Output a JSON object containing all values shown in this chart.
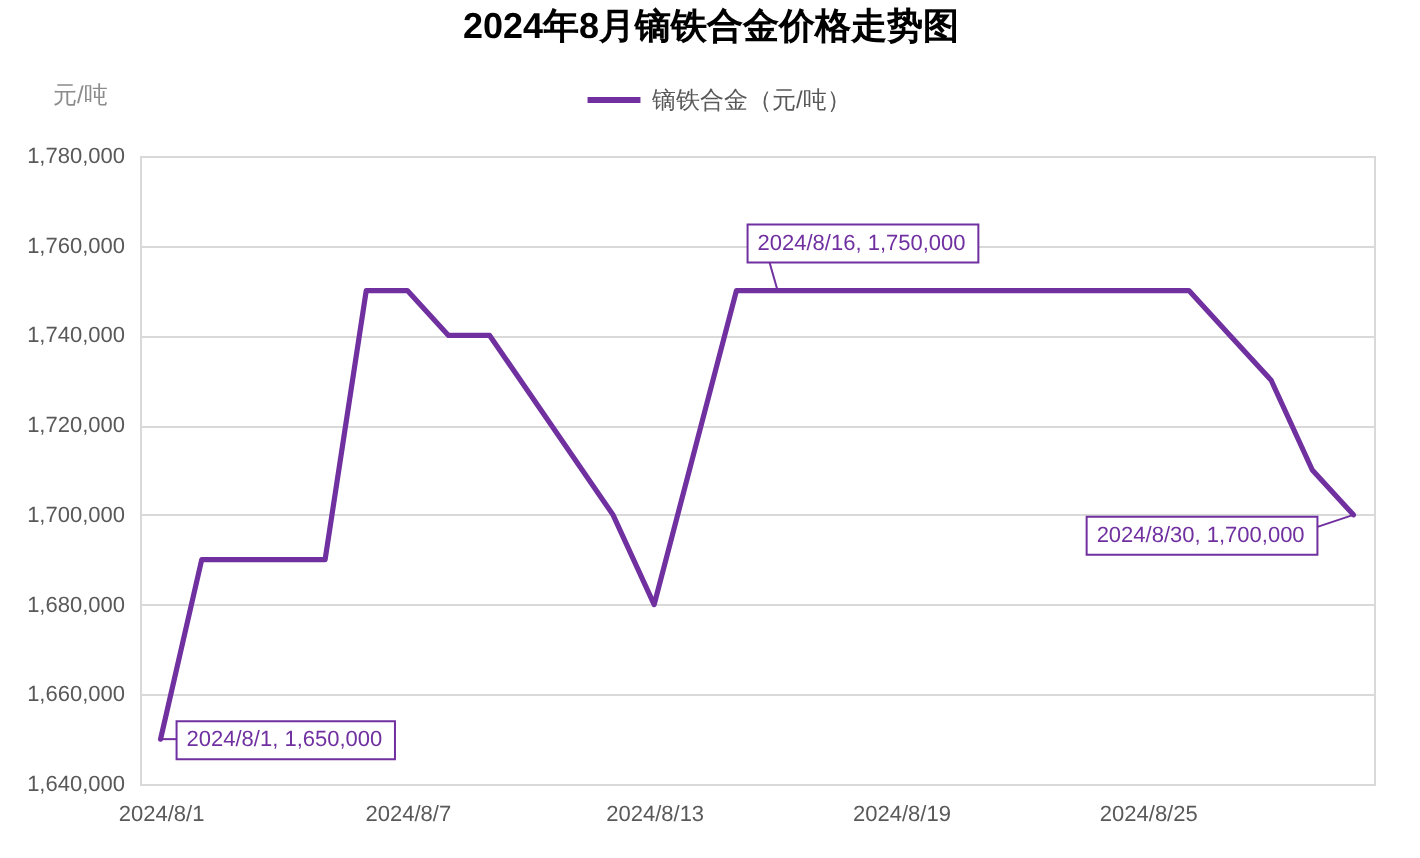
{
  "chart_data": {
    "type": "line",
    "title": "2024年8月镝铁合金价格走势图",
    "ylabel": "元/吨",
    "x": [
      "2024-08-01",
      "2024-08-02",
      "2024-08-05",
      "2024-08-06",
      "2024-08-07",
      "2024-08-08",
      "2024-08-09",
      "2024-08-12",
      "2024-08-13",
      "2024-08-14",
      "2024-08-15",
      "2024-08-16",
      "2024-08-19",
      "2024-08-20",
      "2024-08-21",
      "2024-08-22",
      "2024-08-23",
      "2024-08-26",
      "2024-08-27",
      "2024-08-28",
      "2024-08-29",
      "2024-08-30"
    ],
    "series": [
      {
        "name": "镝铁合金（元/吨）",
        "color": "#7030a0",
        "values": [
          1650000,
          1690000,
          1690000,
          1750000,
          1750000,
          1740000,
          1740000,
          1700000,
          1680000,
          1715000,
          1750000,
          1750000,
          1750000,
          1750000,
          1750000,
          1750000,
          1750000,
          1750000,
          1740000,
          1730000,
          1710000,
          1700000
        ]
      }
    ],
    "xlim": [
      "2024-07-31T12:00",
      "2024-08-30T12:00"
    ],
    "xticks": [
      {
        "value": "2024-08-01",
        "label": "2024/8/1"
      },
      {
        "value": "2024-08-07",
        "label": "2024/8/7"
      },
      {
        "value": "2024-08-13",
        "label": "2024/8/13"
      },
      {
        "value": "2024-08-19",
        "label": "2024/8/19"
      },
      {
        "value": "2024-08-25",
        "label": "2024/8/25"
      }
    ],
    "ylim": [
      1640000,
      1780000
    ],
    "yticks": [
      {
        "value": 1640000,
        "label": "1,640,000"
      },
      {
        "value": 1660000,
        "label": "1,660,000"
      },
      {
        "value": 1680000,
        "label": "1,680,000"
      },
      {
        "value": 1700000,
        "label": "1,700,000"
      },
      {
        "value": 1720000,
        "label": "1,720,000"
      },
      {
        "value": 1740000,
        "label": "1,740,000"
      },
      {
        "value": 1760000,
        "label": "1,760,000"
      },
      {
        "value": 1780000,
        "label": "1,780,000"
      }
    ],
    "grid": "y",
    "legend": "top",
    "line_style": "solid",
    "annotations": [
      {
        "text": "2024/8/1, 1,650,000",
        "x": "2024-08-01",
        "y": 1650000
      },
      {
        "text": "2024/8/16, 1,750,000",
        "x": "2024-08-16",
        "y": 1750000
      },
      {
        "text": "2024/8/30, 1,700,000",
        "x": "2024-08-30",
        "y": 1700000
      }
    ]
  }
}
